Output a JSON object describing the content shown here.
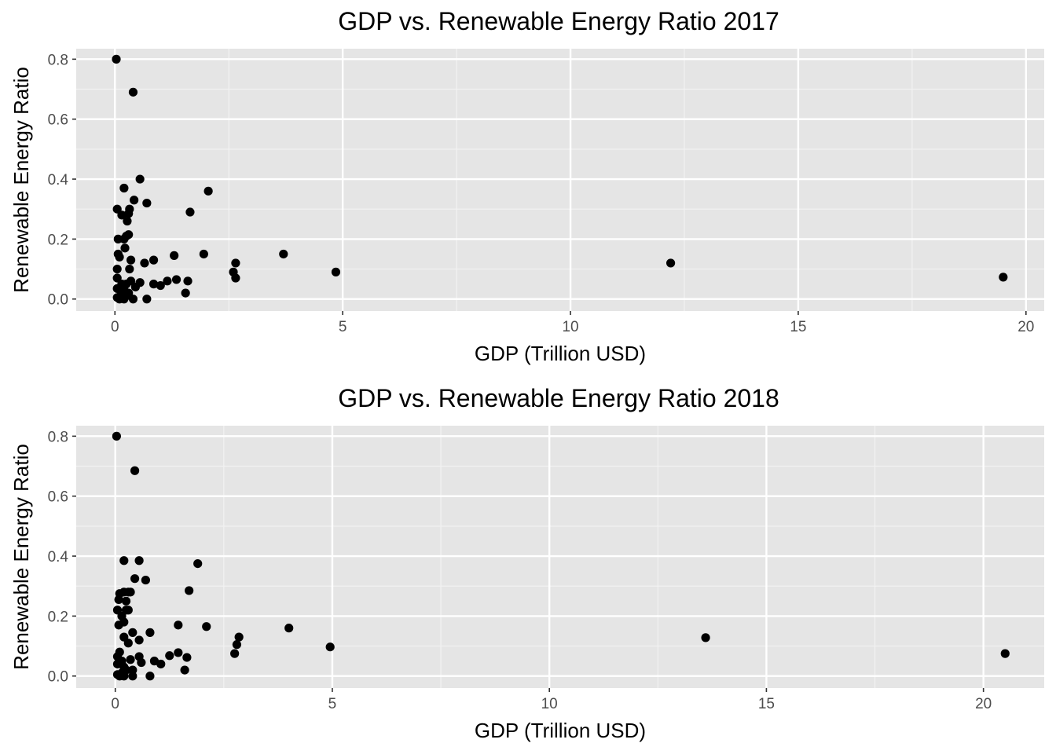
{
  "chart_data": [
    {
      "type": "scatter",
      "title": "GDP vs. Renewable Energy Ratio 2017",
      "xlabel": "GDP (Trillion USD)",
      "ylabel": "Renewable Energy Ratio",
      "xlim": [
        -0.85,
        20.4
      ],
      "ylim": [
        -0.04,
        0.835
      ],
      "xticks": [
        0,
        5,
        10,
        15,
        20
      ],
      "yticks": [
        0.0,
        0.2,
        0.4,
        0.6,
        0.8
      ],
      "xtick_labels": [
        "0",
        "5",
        "10",
        "15",
        "20"
      ],
      "ytick_labels": [
        "0.0",
        "0.2",
        "0.4",
        "0.6",
        "0.8"
      ],
      "grid": true,
      "background": "#e5e5e5",
      "point_color": "#000000",
      "series": [
        {
          "points": [
            [
              0.03,
              0.8
            ],
            [
              0.4,
              0.69
            ],
            [
              0.55,
              0.4
            ],
            [
              0.2,
              0.37
            ],
            [
              2.05,
              0.36
            ],
            [
              0.42,
              0.33
            ],
            [
              0.7,
              0.32
            ],
            [
              0.05,
              0.3
            ],
            [
              0.32,
              0.3
            ],
            [
              1.65,
              0.29
            ],
            [
              0.15,
              0.28
            ],
            [
              0.3,
              0.285
            ],
            [
              0.27,
              0.26
            ],
            [
              0.25,
              0.21
            ],
            [
              0.3,
              0.215
            ],
            [
              0.07,
              0.2
            ],
            [
              0.2,
              0.2
            ],
            [
              0.22,
              0.17
            ],
            [
              1.95,
              0.15
            ],
            [
              3.7,
              0.15
            ],
            [
              0.07,
              0.15
            ],
            [
              1.3,
              0.145
            ],
            [
              0.1,
              0.14
            ],
            [
              0.35,
              0.13
            ],
            [
              0.85,
              0.13
            ],
            [
              0.65,
              0.12
            ],
            [
              2.65,
              0.12
            ],
            [
              12.2,
              0.12
            ],
            [
              0.05,
              0.1
            ],
            [
              0.32,
              0.1
            ],
            [
              4.85,
              0.09
            ],
            [
              2.6,
              0.09
            ],
            [
              2.65,
              0.07
            ],
            [
              0.05,
              0.07
            ],
            [
              1.15,
              0.06
            ],
            [
              1.35,
              0.065
            ],
            [
              1.6,
              0.06
            ],
            [
              0.35,
              0.06
            ],
            [
              0.55,
              0.055
            ],
            [
              19.5,
              0.073
            ],
            [
              0.85,
              0.05
            ],
            [
              1.0,
              0.045
            ],
            [
              0.15,
              0.05
            ],
            [
              0.45,
              0.04
            ],
            [
              0.25,
              0.05
            ],
            [
              0.05,
              0.035
            ],
            [
              0.2,
              0.03
            ],
            [
              0.15,
              0.02
            ],
            [
              0.3,
              0.02
            ],
            [
              1.55,
              0.02
            ],
            [
              0.05,
              0.005
            ],
            [
              0.1,
              0.0
            ],
            [
              0.2,
              0.0
            ],
            [
              0.4,
              0.0
            ],
            [
              0.7,
              0.0
            ],
            [
              0.12,
              0.01
            ],
            [
              0.25,
              0.01
            ]
          ]
        }
      ]
    },
    {
      "type": "scatter",
      "title": "GDP vs. Renewable Energy Ratio 2018",
      "xlabel": "GDP (Trillion USD)",
      "ylabel": "Renewable Energy Ratio",
      "xlim": [
        -0.9,
        21.4
      ],
      "ylim": [
        -0.04,
        0.835
      ],
      "xticks": [
        0,
        5,
        10,
        15,
        20
      ],
      "yticks": [
        0.0,
        0.2,
        0.4,
        0.6,
        0.8
      ],
      "xtick_labels": [
        "0",
        "5",
        "10",
        "15",
        "20"
      ],
      "ytick_labels": [
        "0.0",
        "0.2",
        "0.4",
        "0.6",
        "0.8"
      ],
      "grid": true,
      "background": "#e5e5e5",
      "point_color": "#000000",
      "series": [
        {
          "points": [
            [
              0.03,
              0.8
            ],
            [
              0.45,
              0.685
            ],
            [
              0.55,
              0.385
            ],
            [
              0.2,
              0.385
            ],
            [
              1.9,
              0.375
            ],
            [
              0.45,
              0.325
            ],
            [
              0.7,
              0.32
            ],
            [
              1.7,
              0.285
            ],
            [
              0.1,
              0.275
            ],
            [
              0.2,
              0.28
            ],
            [
              0.3,
              0.28
            ],
            [
              0.35,
              0.28
            ],
            [
              0.08,
              0.255
            ],
            [
              0.25,
              0.25
            ],
            [
              0.05,
              0.22
            ],
            [
              0.25,
              0.22
            ],
            [
              0.3,
              0.22
            ],
            [
              0.15,
              0.2
            ],
            [
              0.2,
              0.18
            ],
            [
              0.08,
              0.17
            ],
            [
              1.45,
              0.17
            ],
            [
              2.1,
              0.165
            ],
            [
              4.0,
              0.16
            ],
            [
              0.4,
              0.145
            ],
            [
              0.8,
              0.145
            ],
            [
              13.6,
              0.128
            ],
            [
              2.85,
              0.13
            ],
            [
              0.2,
              0.13
            ],
            [
              0.55,
              0.12
            ],
            [
              0.3,
              0.11
            ],
            [
              2.8,
              0.105
            ],
            [
              4.95,
              0.097
            ],
            [
              2.75,
              0.075
            ],
            [
              0.1,
              0.08
            ],
            [
              1.45,
              0.078
            ],
            [
              1.25,
              0.068
            ],
            [
              1.65,
              0.062
            ],
            [
              0.05,
              0.065
            ],
            [
              0.55,
              0.065
            ],
            [
              20.5,
              0.075
            ],
            [
              0.35,
              0.055
            ],
            [
              0.9,
              0.05
            ],
            [
              1.05,
              0.04
            ],
            [
              0.15,
              0.05
            ],
            [
              0.6,
              0.045
            ],
            [
              0.05,
              0.04
            ],
            [
              0.2,
              0.03
            ],
            [
              0.25,
              0.02
            ],
            [
              0.4,
              0.02
            ],
            [
              1.6,
              0.02
            ],
            [
              0.05,
              0.005
            ],
            [
              0.1,
              0.0
            ],
            [
              0.2,
              0.0
            ],
            [
              0.4,
              0.0
            ],
            [
              0.8,
              0.0
            ],
            [
              0.15,
              0.01
            ]
          ]
        }
      ]
    }
  ]
}
